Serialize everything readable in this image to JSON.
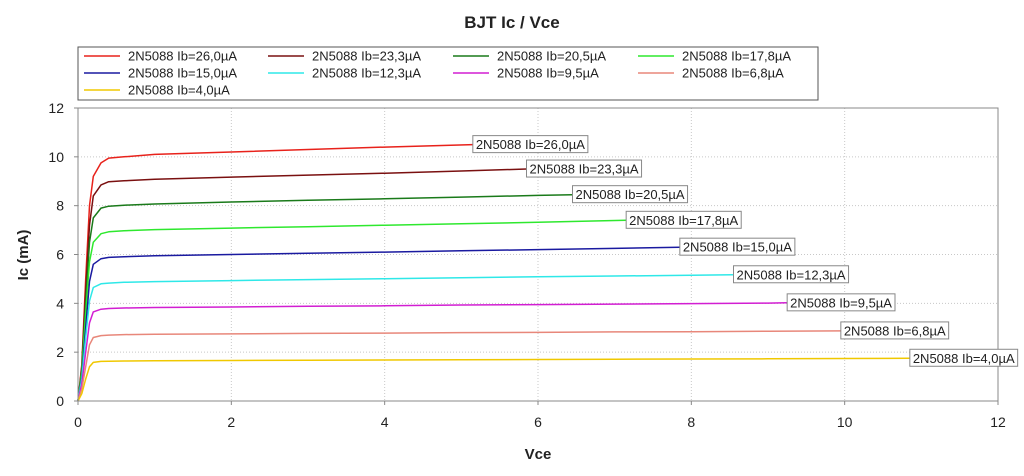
{
  "chart_data": {
    "type": "line",
    "title": "BJT Ic / Vce",
    "xlabel": "Vce",
    "ylabel": "Ic (mA)",
    "xlim": [
      0,
      12
    ],
    "ylim": [
      0,
      12
    ],
    "xticks": [
      0,
      2,
      4,
      6,
      8,
      10,
      12
    ],
    "yticks": [
      0,
      2,
      4,
      6,
      8,
      10,
      12
    ],
    "grid": true,
    "legend_position": "top-left",
    "series": [
      {
        "name": "2N5088 Ib=26,0µA",
        "color": "#e8221b",
        "x": [
          0,
          0.05,
          0.1,
          0.15,
          0.2,
          0.3,
          0.4,
          0.6,
          1,
          2,
          3,
          4,
          5.15
        ],
        "y": [
          0,
          1.5,
          5.0,
          8.0,
          9.2,
          9.75,
          9.95,
          10.0,
          10.1,
          10.2,
          10.3,
          10.4,
          10.5
        ]
      },
      {
        "name": "2N5088 Ib=23,3µA",
        "color": "#7a1010",
        "x": [
          0,
          0.05,
          0.1,
          0.15,
          0.2,
          0.3,
          0.4,
          0.6,
          1,
          2,
          3,
          4,
          5,
          5.85
        ],
        "y": [
          0,
          1.4,
          4.5,
          7.2,
          8.4,
          8.85,
          8.98,
          9.02,
          9.08,
          9.17,
          9.25,
          9.33,
          9.42,
          9.5
        ]
      },
      {
        "name": "2N5088 Ib=20,5µA",
        "color": "#1a7a1a",
        "x": [
          0,
          0.05,
          0.1,
          0.15,
          0.2,
          0.3,
          0.4,
          0.6,
          1,
          2,
          3,
          4,
          5,
          6,
          6.45
        ],
        "y": [
          0,
          1.3,
          4.0,
          6.5,
          7.5,
          7.9,
          7.98,
          8.02,
          8.07,
          8.15,
          8.22,
          8.28,
          8.35,
          8.42,
          8.45
        ]
      },
      {
        "name": "2N5088 Ib=17,8µA",
        "color": "#2ee82e",
        "x": [
          0,
          0.05,
          0.1,
          0.15,
          0.2,
          0.3,
          0.4,
          0.6,
          1,
          2,
          3,
          4,
          5,
          6,
          7.15
        ],
        "y": [
          0,
          1.2,
          3.6,
          5.7,
          6.5,
          6.85,
          6.93,
          6.97,
          7.02,
          7.08,
          7.14,
          7.2,
          7.26,
          7.32,
          7.4
        ]
      },
      {
        "name": "2N5088 Ib=15,0µA",
        "color": "#1a1aa0",
        "x": [
          0,
          0.05,
          0.1,
          0.15,
          0.2,
          0.3,
          0.4,
          0.6,
          1,
          2,
          3,
          4,
          5,
          6,
          7,
          7.85
        ],
        "y": [
          0,
          1.0,
          3.0,
          4.9,
          5.6,
          5.83,
          5.88,
          5.91,
          5.95,
          6.0,
          6.05,
          6.1,
          6.15,
          6.2,
          6.25,
          6.3
        ]
      },
      {
        "name": "2N5088 Ib=12,3µA",
        "color": "#2ee8e8",
        "x": [
          0,
          0.05,
          0.1,
          0.15,
          0.2,
          0.3,
          0.4,
          0.6,
          1,
          2,
          3,
          4,
          5,
          6,
          7,
          8,
          8.55
        ],
        "y": [
          0,
          0.9,
          2.6,
          4.1,
          4.65,
          4.8,
          4.83,
          4.86,
          4.89,
          4.93,
          4.97,
          5.01,
          5.05,
          5.09,
          5.12,
          5.15,
          5.17
        ]
      },
      {
        "name": "2N5088 Ib=9,5µA",
        "color": "#d21ed2",
        "x": [
          0,
          0.05,
          0.1,
          0.15,
          0.2,
          0.3,
          0.4,
          0.6,
          1,
          2,
          3,
          4,
          5,
          6,
          7,
          8,
          9,
          9.25
        ],
        "y": [
          0,
          0.7,
          2.0,
          3.2,
          3.65,
          3.76,
          3.79,
          3.81,
          3.83,
          3.85,
          3.88,
          3.9,
          3.93,
          3.95,
          3.97,
          3.99,
          4.01,
          4.02
        ]
      },
      {
        "name": "2N5088 Ib=6,8µA",
        "color": "#e8877a",
        "x": [
          0,
          0.05,
          0.1,
          0.15,
          0.2,
          0.3,
          0.4,
          0.6,
          1,
          2,
          3,
          4,
          5,
          6,
          7,
          8,
          9,
          9.95
        ],
        "y": [
          0,
          0.5,
          1.4,
          2.3,
          2.6,
          2.68,
          2.7,
          2.72,
          2.73,
          2.75,
          2.77,
          2.78,
          2.8,
          2.81,
          2.83,
          2.84,
          2.86,
          2.87
        ]
      },
      {
        "name": "2N5088 Ib=4,0µA",
        "color": "#f0c800",
        "x": [
          0,
          0.05,
          0.1,
          0.15,
          0.2,
          0.3,
          0.4,
          0.6,
          1,
          2,
          3,
          4,
          5,
          6,
          7,
          8,
          9,
          10,
          10.85
        ],
        "y": [
          0,
          0.3,
          0.9,
          1.4,
          1.58,
          1.62,
          1.63,
          1.64,
          1.65,
          1.66,
          1.67,
          1.68,
          1.69,
          1.7,
          1.71,
          1.72,
          1.73,
          1.74,
          1.75
        ]
      }
    ]
  }
}
